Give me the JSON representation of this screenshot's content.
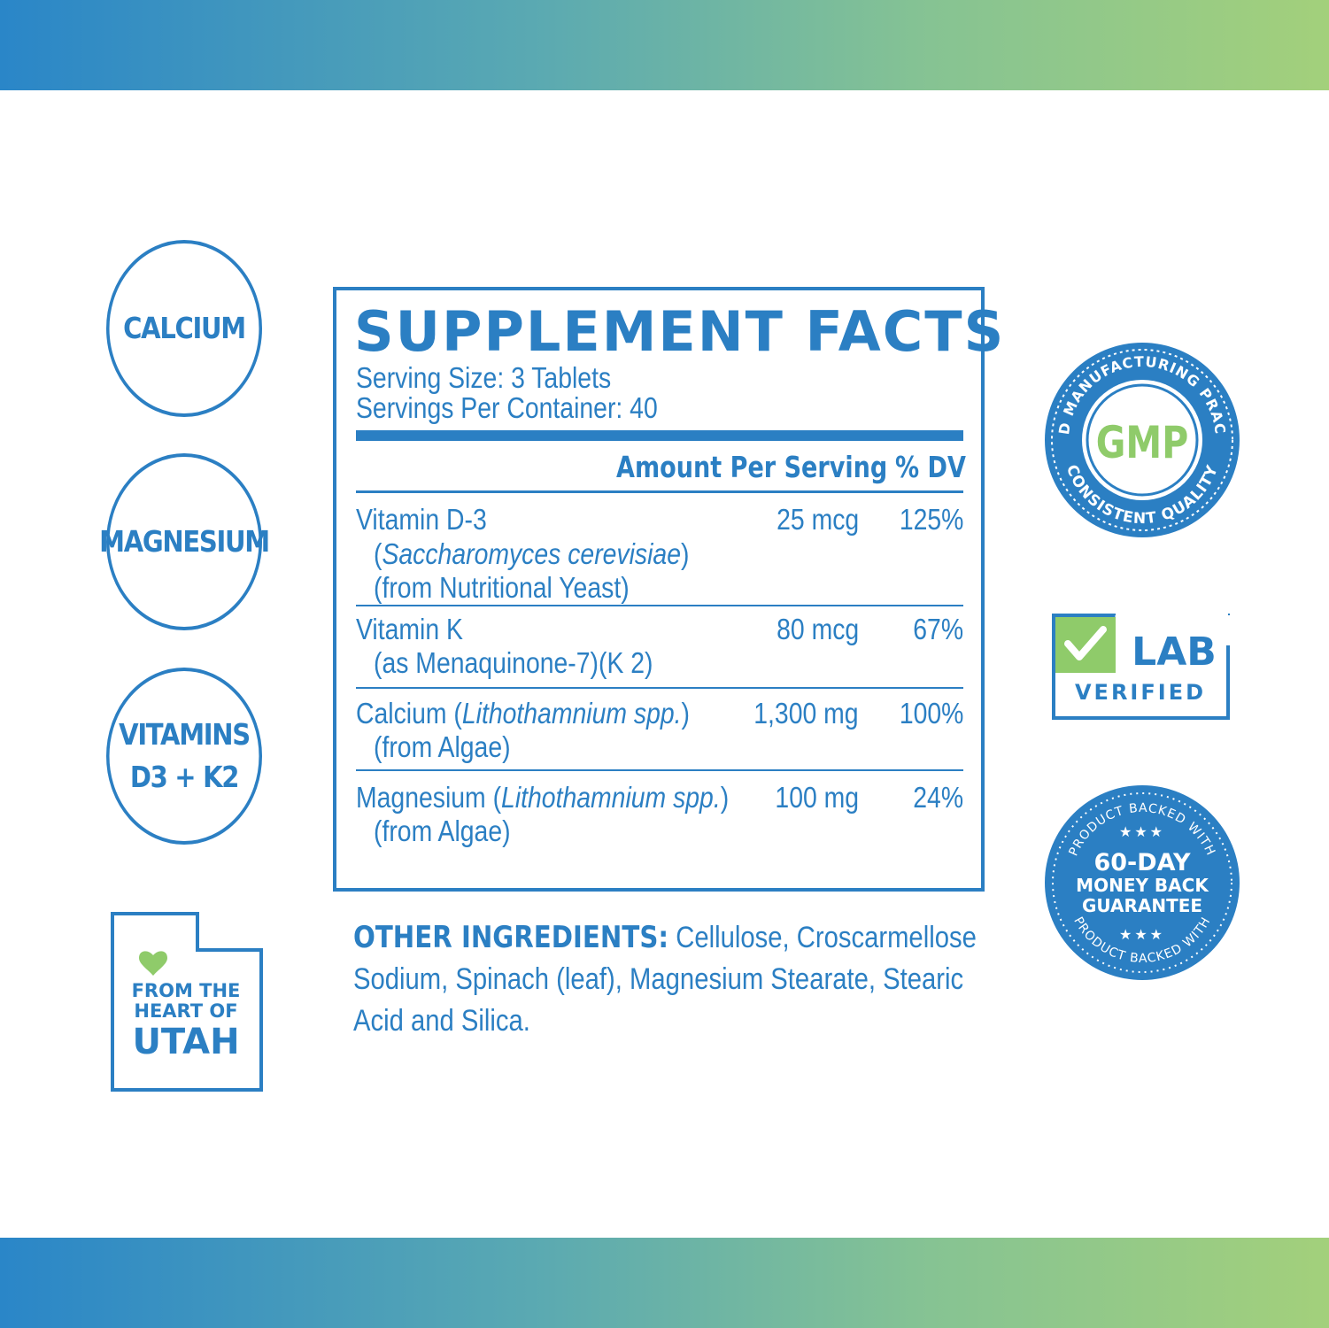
{
  "colors": {
    "brand_blue": "#2b7fc3",
    "green": "#8fcb6a",
    "white": "#ffffff"
  },
  "circles": [
    {
      "lines": [
        "CALCIUM"
      ]
    },
    {
      "lines": [
        "MAGNESIUM"
      ]
    },
    {
      "lines": [
        "VITAMINS",
        "D3 + K2"
      ]
    }
  ],
  "utah": {
    "line1": "FROM THE",
    "line2": "HEART OF",
    "line3": "UTAH",
    "icon": "heart-icon"
  },
  "facts": {
    "title": "SUPPLEMENT FACTS",
    "serving_size": "Serving Size: 3 Tablets",
    "servings_per_container": "Servings Per Container: 40",
    "col_amount": "Amount Per Serving",
    "col_dv": "% DV",
    "rows": [
      {
        "name": "Vitamin D-3",
        "sub1_open": "(",
        "sub1_italic": "Saccharomyces cerevisiae",
        "sub1_close": ")",
        "sub2": "(from Nutritional Yeast)",
        "amount": "25 mcg",
        "dv": "125%"
      },
      {
        "name": "Vitamin K",
        "sub1": "(as Menaquinone-7)(K 2)",
        "amount": "80 mcg",
        "dv": "67%"
      },
      {
        "name": "Calcium (",
        "name_italic": "Lithothamnium spp.",
        "name_close": ")",
        "sub1": "(from Algae)",
        "amount": "1,300 mg",
        "dv": "100%"
      },
      {
        "name": "Magnesium (",
        "name_italic": "Lithothamnium spp.",
        "name_close": ")",
        "sub1": "(from Algae)",
        "amount": "100 mg",
        "dv": "24%"
      }
    ]
  },
  "other_ingredients": {
    "label": "OTHER INGREDIENTS:",
    "text": " Cellulose, Croscarmellose Sodium, Spinach (leaf), Magnesium Stearate, Stearic Acid and Silica."
  },
  "badges": {
    "gmp": {
      "center": "GMP",
      "top_ring": "GOOD MANUFACTURING PRACTICE",
      "bottom_ring": "CONSISTENT QUALITY"
    },
    "lab": {
      "line1": "LAB",
      "line2": "VERIFIED",
      "icon": "checkmark-icon"
    },
    "money": {
      "ring_top": "PRODUCT BACKED WITH",
      "ring_bottom": "PRODUCT BACKED WITH",
      "stars": "★★★",
      "line1": "60-DAY",
      "line2": "MONEY BACK",
      "line3": "GUARANTEE"
    }
  }
}
